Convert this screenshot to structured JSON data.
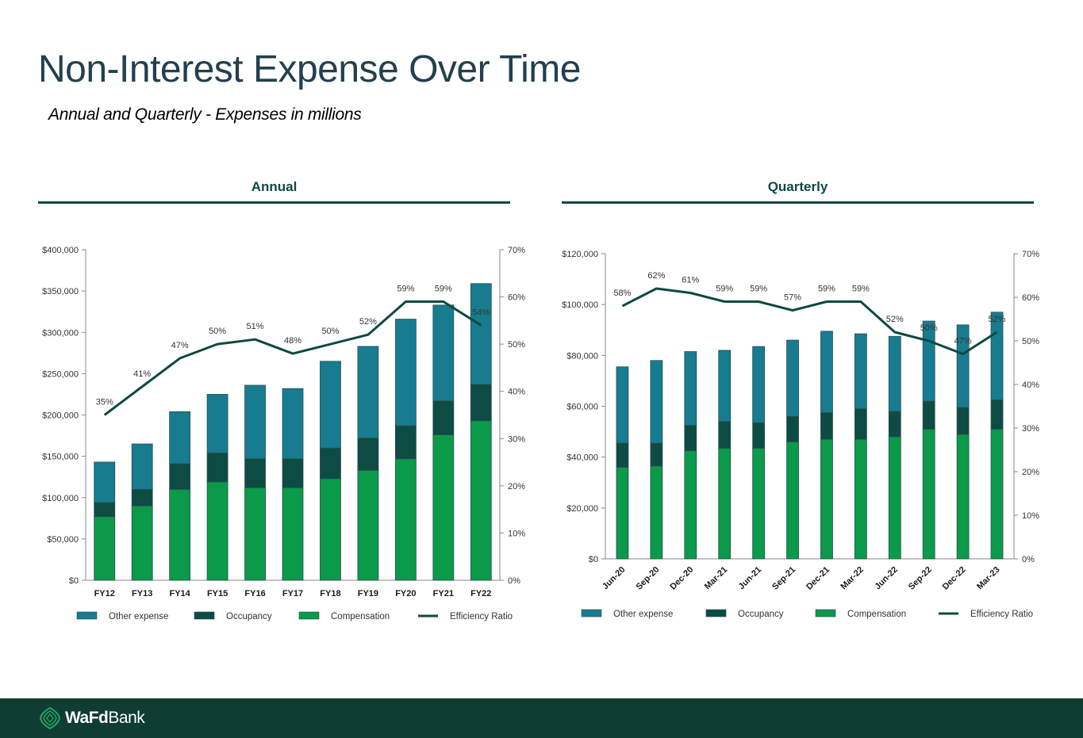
{
  "page": {
    "title": "Non-Interest Expense Over Time",
    "subtitle": "Annual and Quarterly - Expenses in millions"
  },
  "sections": {
    "annual": "Annual",
    "quarterly": "Quarterly"
  },
  "footer": {
    "logo_bold": "WaFd",
    "logo_regular": "Bank"
  },
  "colors": {
    "other": "#177c8f",
    "occupancy": "#0c4c42",
    "compensation": "#0a9a4a",
    "ratio_line": "#0f4a3e",
    "footer": "#0f3c33"
  },
  "chart_data": [
    {
      "id": "annual",
      "type": "bar",
      "stacked": true,
      "categories": [
        "FY12",
        "FY13",
        "FY14",
        "FY15",
        "FY16",
        "FY17",
        "FY18",
        "FY19",
        "FY20",
        "FY21",
        "FY22"
      ],
      "series": [
        {
          "name": "Compensation",
          "values": [
            77000,
            90000,
            110000,
            119000,
            112000,
            112000,
            123000,
            133000,
            147000,
            176000,
            193000
          ]
        },
        {
          "name": "Occupancy",
          "values": [
            17000,
            20000,
            31000,
            35000,
            35000,
            35000,
            37000,
            39000,
            40000,
            41000,
            44000
          ]
        },
        {
          "name": "Other expense",
          "values": [
            49000,
            55000,
            63000,
            71000,
            89000,
            85000,
            105000,
            111000,
            129000,
            116000,
            122000
          ]
        }
      ],
      "line": {
        "name": "Efficiency Ratio",
        "values": [
          35,
          41,
          47,
          50,
          51,
          48,
          50,
          52,
          59,
          59,
          54
        ],
        "labels": [
          "35%",
          "41%",
          "47%",
          "50%",
          "51%",
          "48%",
          "50%",
          "52%",
          "59%",
          "59%",
          "54%"
        ]
      },
      "y_left": {
        "min": 0,
        "max": 400000,
        "step": 50000,
        "ticks": [
          "$0",
          "$50,000",
          "$100,000",
          "$150,000",
          "$200,000",
          "$250,000",
          "$300,000",
          "$350,000",
          "$400,000"
        ]
      },
      "y_right": {
        "min": 0,
        "max": 70,
        "step": 10,
        "ticks": [
          "0%",
          "10%",
          "20%",
          "30%",
          "40%",
          "50%",
          "60%",
          "70%"
        ]
      },
      "legend": [
        "Other expense",
        "Occupancy",
        "Compensation",
        "Efficiency Ratio"
      ]
    },
    {
      "id": "quarterly",
      "type": "bar",
      "stacked": true,
      "categories": [
        "Jun-20",
        "Sep-20",
        "Dec-20",
        "Mar-21",
        "Jun-21",
        "Sep-21",
        "Dec-21",
        "Mar-22",
        "Jun-22",
        "Sep-22",
        "Dec-22",
        "Mar-23"
      ],
      "series": [
        {
          "name": "Compensation",
          "values": [
            36000,
            36500,
            42500,
            43500,
            43500,
            46000,
            47000,
            47000,
            48000,
            51000,
            49000,
            51000
          ]
        },
        {
          "name": "Occupancy",
          "values": [
            9500,
            9000,
            10000,
            10500,
            10000,
            10000,
            10500,
            12000,
            10000,
            11000,
            10500,
            11500
          ]
        },
        {
          "name": "Other expense",
          "values": [
            30000,
            32500,
            29000,
            28000,
            30000,
            30000,
            32000,
            29500,
            29500,
            31500,
            32500,
            34500
          ]
        }
      ],
      "line": {
        "name": "Efficiency Ratio",
        "values": [
          58,
          62,
          61,
          59,
          59,
          57,
          59,
          59,
          52,
          50,
          47,
          52
        ],
        "labels": [
          "58%",
          "62%",
          "61%",
          "59%",
          "59%",
          "57%",
          "59%",
          "59%",
          "52%",
          "50%",
          "47%",
          "52%"
        ]
      },
      "y_left": {
        "min": 0,
        "max": 120000,
        "step": 20000,
        "ticks": [
          "$0",
          "$20,000",
          "$40,000",
          "$60,000",
          "$80,000",
          "$100,000",
          "$120,000"
        ]
      },
      "y_right": {
        "min": 0,
        "max": 70,
        "step": 10,
        "ticks": [
          "0%",
          "10%",
          "20%",
          "30%",
          "40%",
          "50%",
          "60%",
          "70%"
        ]
      },
      "legend": [
        "Other expense",
        "Occupancy",
        "Compensation",
        "Efficiency Ratio"
      ]
    }
  ]
}
